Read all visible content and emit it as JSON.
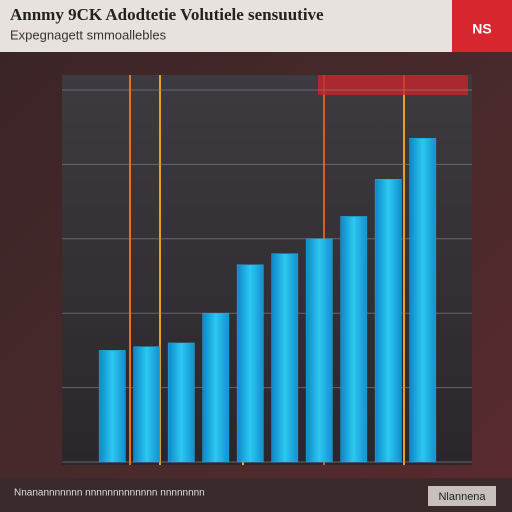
{
  "chart_data": {
    "type": "bar",
    "title": "Annmy 9CK Adodtetie Volutiele sensuutive",
    "subtitle": "Expegnagett smmoallebles",
    "badge": "NS",
    "footer": "Nnanannnnnnn nnnnnnnnnnnnn nnnnnnnn",
    "button": "Nlannena",
    "categories": [
      null,
      null,
      null,
      null,
      null,
      null,
      null,
      null,
      null,
      null
    ],
    "values": [
      30,
      31,
      32,
      40,
      53,
      56,
      60,
      66,
      76,
      87
    ],
    "color": "#1eb4e6",
    "ylim": [
      0,
      100
    ],
    "yticks": [
      0,
      20,
      40,
      60,
      80,
      100
    ],
    "grid": true
  }
}
